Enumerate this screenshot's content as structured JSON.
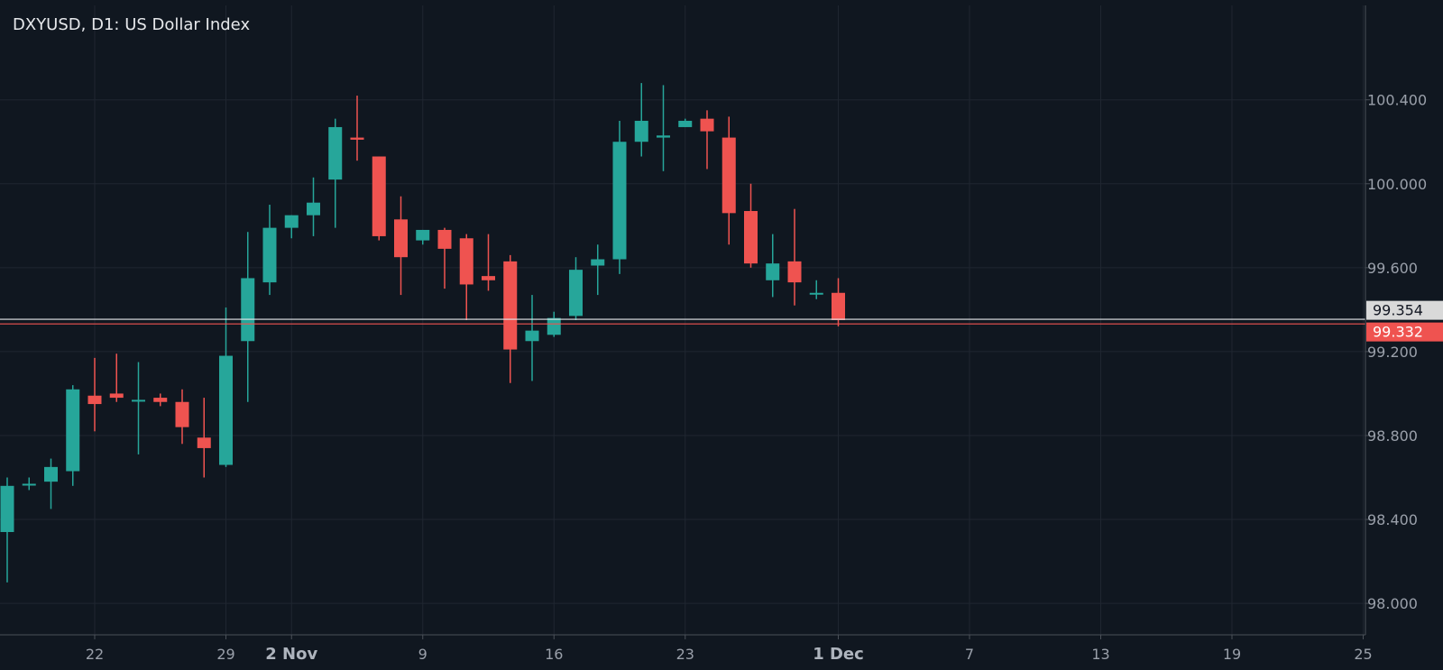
{
  "chart_data": {
    "type": "candlestick",
    "title": "DXYUSD, D1: US Dollar Index",
    "colors": {
      "up": "#26a69a",
      "down": "#ef5350",
      "background": "#101720",
      "grid": "#1f2630",
      "axis_text": "#9aa0aa",
      "axis_line": "#4a5058"
    },
    "ylim": [
      97.85,
      100.85
    ],
    "y_ticks": [
      "98.000",
      "98.400",
      "98.800",
      "99.200",
      "99.600",
      "100.000",
      "100.400"
    ],
    "x_tick_labels": [
      {
        "label": "22",
        "index": 4,
        "strong": false
      },
      {
        "label": "29",
        "index": 10,
        "strong": false
      },
      {
        "label": "2 Nov",
        "index": 13,
        "strong": true
      },
      {
        "label": "9",
        "index": 19,
        "strong": false
      },
      {
        "label": "16",
        "index": 25,
        "strong": false
      },
      {
        "label": "23",
        "index": 31,
        "strong": false
      },
      {
        "label": "1 Dec",
        "index": 38,
        "strong": true
      },
      {
        "label": "7",
        "index": 44,
        "strong": false
      },
      {
        "label": "13",
        "index": 50,
        "strong": false
      },
      {
        "label": "19",
        "index": 56,
        "strong": false
      },
      {
        "label": "25",
        "index": 62,
        "strong": false
      }
    ],
    "candles": [
      {
        "open": 98.34,
        "high": 98.6,
        "low": 98.1,
        "close": 98.56
      },
      {
        "open": 98.57,
        "high": 98.6,
        "low": 98.54,
        "close": 98.57
      },
      {
        "open": 98.58,
        "high": 98.69,
        "low": 98.45,
        "close": 98.65
      },
      {
        "open": 98.63,
        "high": 99.04,
        "low": 98.56,
        "close": 99.02
      },
      {
        "open": 98.99,
        "high": 99.17,
        "low": 98.82,
        "close": 98.95
      },
      {
        "open": 99.0,
        "high": 99.19,
        "low": 98.96,
        "close": 98.98
      },
      {
        "open": 98.97,
        "high": 99.15,
        "low": 98.71,
        "close": 98.97
      },
      {
        "open": 98.98,
        "high": 99.0,
        "low": 98.94,
        "close": 98.96
      },
      {
        "open": 98.96,
        "high": 99.02,
        "low": 98.76,
        "close": 98.84
      },
      {
        "open": 98.79,
        "high": 98.98,
        "low": 98.6,
        "close": 98.74
      },
      {
        "open": 98.66,
        "high": 99.41,
        "low": 98.65,
        "close": 99.18
      },
      {
        "open": 99.25,
        "high": 99.77,
        "low": 98.96,
        "close": 99.55
      },
      {
        "open": 99.53,
        "high": 99.9,
        "low": 99.47,
        "close": 99.79
      },
      {
        "open": 99.79,
        "high": 99.85,
        "low": 99.74,
        "close": 99.85
      },
      {
        "open": 99.85,
        "high": 100.03,
        "low": 99.75,
        "close": 99.91
      },
      {
        "open": 100.02,
        "high": 100.31,
        "low": 99.79,
        "close": 100.27
      },
      {
        "open": 100.22,
        "high": 100.42,
        "low": 100.11,
        "close": 100.21
      },
      {
        "open": 100.13,
        "high": 100.13,
        "low": 99.73,
        "close": 99.75
      },
      {
        "open": 99.83,
        "high": 99.94,
        "low": 99.47,
        "close": 99.65
      },
      {
        "open": 99.73,
        "high": 99.78,
        "low": 99.71,
        "close": 99.78
      },
      {
        "open": 99.78,
        "high": 99.79,
        "low": 99.5,
        "close": 99.69
      },
      {
        "open": 99.74,
        "high": 99.76,
        "low": 99.35,
        "close": 99.52
      },
      {
        "open": 99.56,
        "high": 99.76,
        "low": 99.49,
        "close": 99.54
      },
      {
        "open": 99.63,
        "high": 99.66,
        "low": 99.05,
        "close": 99.21
      },
      {
        "open": 99.25,
        "high": 99.47,
        "low": 99.06,
        "close": 99.3
      },
      {
        "open": 99.28,
        "high": 99.39,
        "low": 99.27,
        "close": 99.36
      },
      {
        "open": 99.37,
        "high": 99.65,
        "low": 99.35,
        "close": 99.59
      },
      {
        "open": 99.61,
        "high": 99.71,
        "low": 99.47,
        "close": 99.64
      },
      {
        "open": 99.64,
        "high": 100.3,
        "low": 99.57,
        "close": 100.2
      },
      {
        "open": 100.2,
        "high": 100.48,
        "low": 100.13,
        "close": 100.3
      },
      {
        "open": 100.22,
        "high": 100.47,
        "low": 100.06,
        "close": 100.23
      },
      {
        "open": 100.27,
        "high": 100.31,
        "low": 100.27,
        "close": 100.3
      },
      {
        "open": 100.31,
        "high": 100.35,
        "low": 100.07,
        "close": 100.25
      },
      {
        "open": 100.22,
        "high": 100.32,
        "low": 99.71,
        "close": 99.86
      },
      {
        "open": 99.87,
        "high": 100.0,
        "low": 99.6,
        "close": 99.62
      },
      {
        "open": 99.54,
        "high": 99.76,
        "low": 99.46,
        "close": 99.62
      },
      {
        "open": 99.63,
        "high": 99.88,
        "low": 99.42,
        "close": 99.53
      },
      {
        "open": 99.48,
        "high": 99.54,
        "low": 99.45,
        "close": 99.48
      },
      {
        "open": 99.48,
        "high": 99.55,
        "low": 99.32,
        "close": 99.35
      }
    ],
    "price_lines": [
      {
        "value": 99.354,
        "label": "99.354",
        "line_color": "#e6e8eb",
        "bg": "#d9d9d9",
        "text_color": "#131722"
      },
      {
        "value": 99.332,
        "label": "99.332",
        "line_color": "#ef5350",
        "bg": "#ef5350",
        "text_color": "#ffffff"
      }
    ]
  }
}
